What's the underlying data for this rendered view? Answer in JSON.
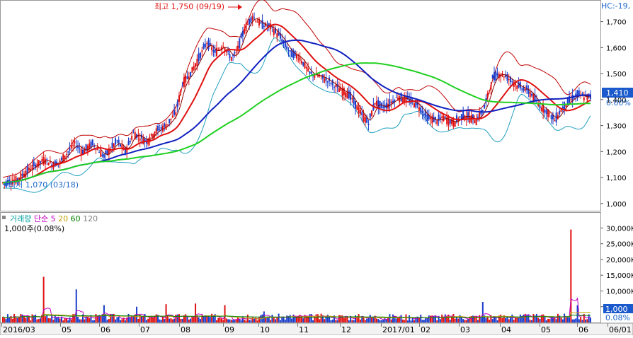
{
  "chart_data": [
    {
      "type": "candlestick",
      "panel": "price",
      "header_label": "HC:-19,",
      "x_ticks": [
        "2016/03",
        "05",
        "06",
        "07",
        "08",
        "09",
        "10",
        "11",
        "12",
        "2017/01",
        "02",
        "03",
        "04",
        "05",
        "06",
        "06/01"
      ],
      "y_ticks": [
        "1,700",
        "1,600",
        "1,500",
        "1,400",
        "1,300",
        "1,200",
        "1,100",
        "1,000"
      ],
      "ylim": [
        975,
        1775
      ],
      "current_price_label": "1,410",
      "current_change_label": "0.00%",
      "high_annotation": {
        "text": "최고 1,750 (09/19)",
        "value": 1750
      },
      "low_annotation": {
        "text": "최저 1,070 (03/18)",
        "value": 1070
      },
      "close_path": [
        [
          0,
          1080
        ],
        [
          8,
          1090
        ],
        [
          18,
          1140
        ],
        [
          26,
          1170
        ],
        [
          30,
          1150
        ],
        [
          35,
          1160
        ],
        [
          44,
          1230
        ],
        [
          49,
          1200
        ],
        [
          55,
          1230
        ],
        [
          62,
          1180
        ],
        [
          70,
          1240
        ],
        [
          75,
          1200
        ],
        [
          80,
          1270
        ],
        [
          88,
          1240
        ],
        [
          94,
          1280
        ],
        [
          100,
          1300
        ],
        [
          106,
          1350
        ],
        [
          110,
          1460
        ],
        [
          115,
          1500
        ],
        [
          120,
          1560
        ],
        [
          125,
          1620
        ],
        [
          130,
          1580
        ],
        [
          135,
          1610
        ],
        [
          140,
          1560
        ],
        [
          143,
          1580
        ],
        [
          148,
          1670
        ],
        [
          153,
          1720
        ],
        [
          158,
          1690
        ],
        [
          164,
          1680
        ],
        [
          170,
          1640
        ],
        [
          176,
          1580
        ],
        [
          182,
          1560
        ],
        [
          188,
          1500
        ],
        [
          194,
          1490
        ],
        [
          200,
          1470
        ],
        [
          206,
          1440
        ],
        [
          212,
          1420
        ],
        [
          216,
          1380
        ],
        [
          220,
          1340
        ],
        [
          224,
          1310
        ],
        [
          228,
          1390
        ],
        [
          232,
          1370
        ],
        [
          236,
          1380
        ],
        [
          242,
          1410
        ],
        [
          248,
          1400
        ],
        [
          254,
          1380
        ],
        [
          260,
          1330
        ],
        [
          266,
          1320
        ],
        [
          270,
          1330
        ],
        [
          276,
          1310
        ],
        [
          282,
          1340
        ],
        [
          290,
          1320
        ],
        [
          295,
          1370
        ],
        [
          300,
          1480
        ],
        [
          304,
          1500
        ],
        [
          308,
          1490
        ],
        [
          312,
          1470
        ],
        [
          316,
          1450
        ],
        [
          320,
          1440
        ],
        [
          324,
          1420
        ],
        [
          328,
          1380
        ],
        [
          334,
          1350
        ],
        [
          338,
          1320
        ],
        [
          342,
          1360
        ],
        [
          346,
          1390
        ],
        [
          352,
          1420
        ],
        [
          356,
          1410
        ],
        [
          360,
          1410
        ]
      ],
      "series": [
        {
          "name": "MA5",
          "color": "#8b0000"
        },
        {
          "name": "MA20",
          "color": "#e01010"
        },
        {
          "name": "MA60",
          "color": "#1020c0"
        },
        {
          "name": "MA120",
          "color": "#20d020"
        },
        {
          "name": "Band",
          "color": "#c00000"
        },
        {
          "name": "Band",
          "color": "#20a0c0"
        }
      ]
    },
    {
      "type": "bar",
      "panel": "volume",
      "legend": [
        {
          "label": "거래량",
          "color": "#00a0a0"
        },
        {
          "label": "단순",
          "color": "#c000c0"
        },
        {
          "label": "5",
          "color": "#c000c0"
        },
        {
          "label": "20",
          "color": "#c0a000"
        },
        {
          "label": "60",
          "color": "#008000"
        },
        {
          "label": "120",
          "color": "#808080"
        }
      ],
      "unit_label": "1,000주(0.08%)",
      "y_ticks": [
        "30,000K",
        "25,000K",
        "20,000K",
        "15,000K",
        "10,000K",
        "5,000K"
      ],
      "ylim": [
        0,
        31000
      ],
      "current_value_label": "1,000",
      "current_pct_label": "0.08%",
      "spikes": [
        [
          0,
          1800
        ],
        [
          12,
          2500
        ],
        [
          25,
          14500
        ],
        [
          45,
          10500
        ],
        [
          62,
          5500
        ],
        [
          82,
          5000
        ],
        [
          100,
          5800
        ],
        [
          118,
          6000
        ],
        [
          136,
          5500
        ],
        [
          150,
          2500
        ],
        [
          160,
          3500
        ],
        [
          178,
          2500
        ],
        [
          200,
          1800
        ],
        [
          220,
          2000
        ],
        [
          240,
          2000
        ],
        [
          265,
          2200
        ],
        [
          294,
          6500
        ],
        [
          312,
          2500
        ],
        [
          330,
          2400
        ],
        [
          344,
          2800
        ],
        [
          348,
          29500
        ],
        [
          352,
          5500
        ],
        [
          360,
          1500
        ]
      ]
    }
  ]
}
